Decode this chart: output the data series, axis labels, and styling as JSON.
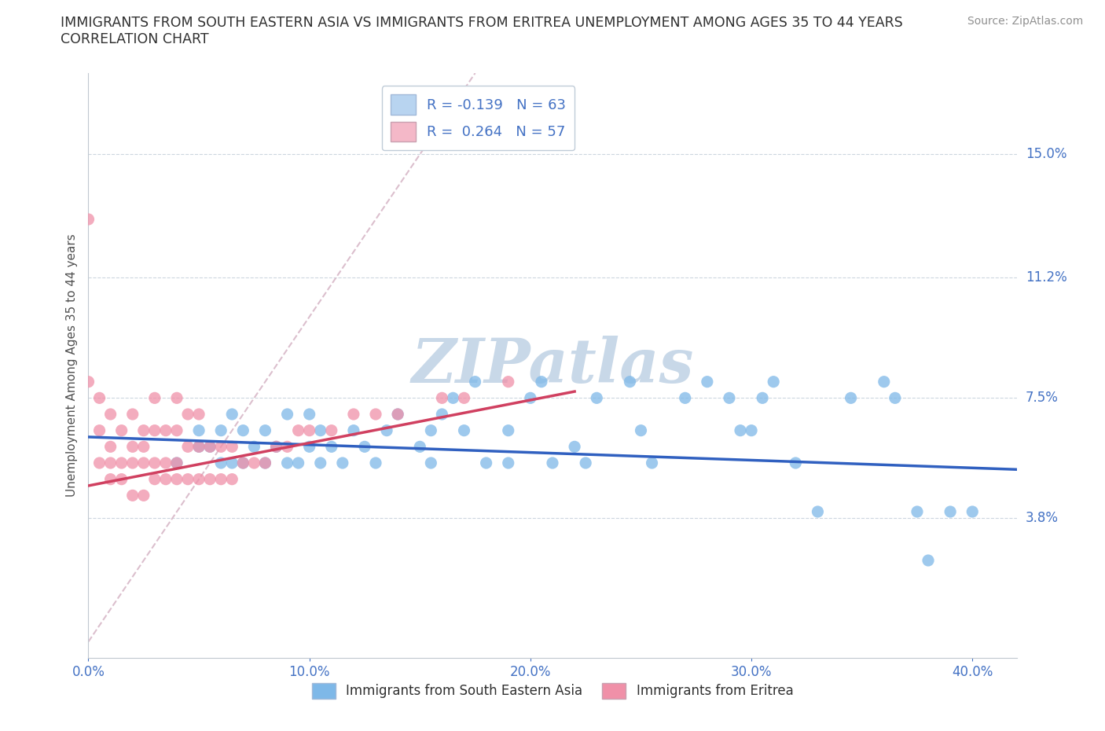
{
  "title_line1": "IMMIGRANTS FROM SOUTH EASTERN ASIA VS IMMIGRANTS FROM ERITREA UNEMPLOYMENT AMONG AGES 35 TO 44 YEARS",
  "title_line2": "CORRELATION CHART",
  "source": "Source: ZipAtlas.com",
  "ylabel": "Unemployment Among Ages 35 to 44 years",
  "xlim": [
    0.0,
    0.42
  ],
  "ylim": [
    -0.005,
    0.175
  ],
  "yticks": [
    0.038,
    0.075,
    0.112,
    0.15
  ],
  "ytick_labels": [
    "3.8%",
    "7.5%",
    "11.2%",
    "15.0%"
  ],
  "xticks": [
    0.0,
    0.1,
    0.2,
    0.3,
    0.4
  ],
  "xtick_labels": [
    "0.0%",
    "10.0%",
    "20.0%",
    "30.0%",
    "40.0%"
  ],
  "legend_entries": [
    {
      "label": "R = -0.139   N = 63",
      "color": "#b8d4f0"
    },
    {
      "label": "R =  0.264   N = 57",
      "color": "#f4b8c8"
    }
  ],
  "legend_labels_bottom": [
    "Immigrants from South Eastern Asia",
    "Immigrants from Eritrea"
  ],
  "blue_scatter_color": "#7eb8e8",
  "pink_scatter_color": "#f090a8",
  "blue_line_color": "#3060c0",
  "pink_line_color": "#d04060",
  "diag_line_color": "#d8b8c8",
  "watermark": "ZIPatlas",
  "watermark_color": "#c8d8e8",
  "background_color": "#ffffff",
  "grid_color": "#c0ccd8",
  "title_color": "#303030",
  "axis_label_color": "#505050",
  "tick_label_color": "#4472c4",
  "blue_scatter_x": [
    0.04,
    0.05,
    0.05,
    0.055,
    0.06,
    0.06,
    0.065,
    0.065,
    0.07,
    0.07,
    0.075,
    0.08,
    0.08,
    0.085,
    0.09,
    0.09,
    0.095,
    0.1,
    0.1,
    0.105,
    0.105,
    0.11,
    0.115,
    0.12,
    0.125,
    0.13,
    0.135,
    0.14,
    0.15,
    0.155,
    0.155,
    0.16,
    0.165,
    0.17,
    0.175,
    0.18,
    0.19,
    0.19,
    0.2,
    0.205,
    0.21,
    0.22,
    0.225,
    0.23,
    0.245,
    0.25,
    0.255,
    0.27,
    0.28,
    0.29,
    0.295,
    0.3,
    0.305,
    0.31,
    0.32,
    0.33,
    0.345,
    0.36,
    0.365,
    0.375,
    0.38,
    0.39,
    0.4
  ],
  "blue_scatter_y": [
    0.055,
    0.06,
    0.065,
    0.06,
    0.055,
    0.065,
    0.055,
    0.07,
    0.055,
    0.065,
    0.06,
    0.055,
    0.065,
    0.06,
    0.055,
    0.07,
    0.055,
    0.06,
    0.07,
    0.065,
    0.055,
    0.06,
    0.055,
    0.065,
    0.06,
    0.055,
    0.065,
    0.07,
    0.06,
    0.065,
    0.055,
    0.07,
    0.075,
    0.065,
    0.08,
    0.055,
    0.065,
    0.055,
    0.075,
    0.08,
    0.055,
    0.06,
    0.055,
    0.075,
    0.08,
    0.065,
    0.055,
    0.075,
    0.08,
    0.075,
    0.065,
    0.065,
    0.075,
    0.08,
    0.055,
    0.04,
    0.075,
    0.08,
    0.075,
    0.04,
    0.025,
    0.04,
    0.04
  ],
  "pink_scatter_x": [
    0.005,
    0.005,
    0.005,
    0.01,
    0.01,
    0.01,
    0.01,
    0.015,
    0.015,
    0.015,
    0.02,
    0.02,
    0.02,
    0.02,
    0.025,
    0.025,
    0.025,
    0.025,
    0.03,
    0.03,
    0.03,
    0.03,
    0.035,
    0.035,
    0.035,
    0.04,
    0.04,
    0.04,
    0.04,
    0.045,
    0.045,
    0.045,
    0.05,
    0.05,
    0.05,
    0.055,
    0.055,
    0.06,
    0.06,
    0.065,
    0.065,
    0.07,
    0.075,
    0.08,
    0.085,
    0.09,
    0.095,
    0.1,
    0.11,
    0.12,
    0.13,
    0.14,
    0.16,
    0.17,
    0.19,
    0.0,
    0.0
  ],
  "pink_scatter_y": [
    0.055,
    0.065,
    0.075,
    0.05,
    0.055,
    0.06,
    0.07,
    0.05,
    0.055,
    0.065,
    0.045,
    0.055,
    0.06,
    0.07,
    0.045,
    0.055,
    0.06,
    0.065,
    0.05,
    0.055,
    0.065,
    0.075,
    0.05,
    0.055,
    0.065,
    0.05,
    0.055,
    0.065,
    0.075,
    0.05,
    0.06,
    0.07,
    0.05,
    0.06,
    0.07,
    0.05,
    0.06,
    0.05,
    0.06,
    0.05,
    0.06,
    0.055,
    0.055,
    0.055,
    0.06,
    0.06,
    0.065,
    0.065,
    0.065,
    0.07,
    0.07,
    0.07,
    0.075,
    0.075,
    0.08,
    0.13,
    0.08
  ],
  "blue_trend_x": [
    0.0,
    0.42
  ],
  "blue_trend_y": [
    0.063,
    0.053
  ],
  "pink_trend_x": [
    0.0,
    0.22
  ],
  "pink_trend_y": [
    0.048,
    0.077
  ],
  "diag_line_x": [
    0.0,
    0.175
  ],
  "diag_line_y": [
    0.0,
    0.175
  ]
}
